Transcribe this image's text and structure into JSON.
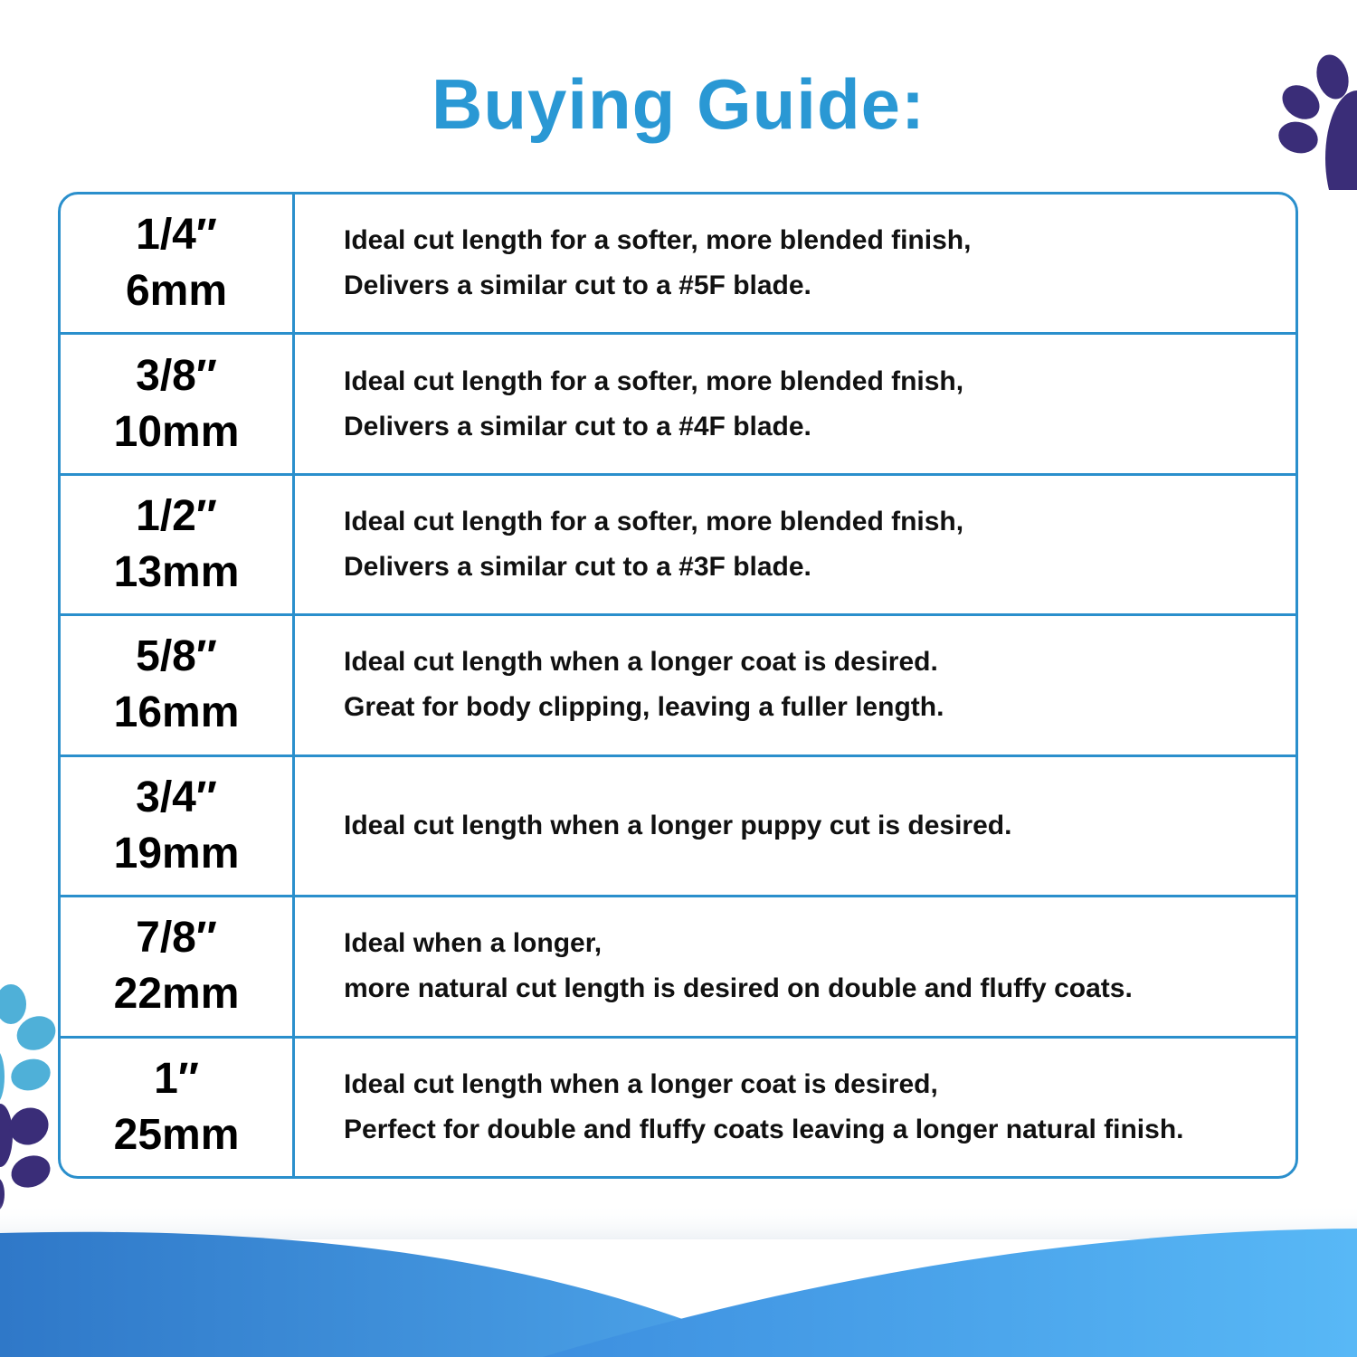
{
  "title": "Buying Guide:",
  "colors": {
    "accent": "#2a98d4",
    "border": "#2a8fcc",
    "paw_dark": "#3a2d78",
    "paw_light": "#4fb0d8",
    "wave_left": "#2f78c8",
    "wave_right": "#4aaaf0"
  },
  "rows": [
    {
      "inch": "1/4″",
      "mm": "6mm",
      "lines": [
        "Ideal cut length for a softer, more blended finish,",
        "Delivers a similar cut to a #5F blade."
      ]
    },
    {
      "inch": "3/8″",
      "mm": "10mm",
      "lines": [
        "Ideal cut length for a softer, more blended fnish,",
        "Delivers a similar cut to a #4F blade."
      ]
    },
    {
      "inch": "1/2″",
      "mm": "13mm",
      "lines": [
        "Ideal cut length for a softer, more blended fnish,",
        "Delivers a similar cut to a #3F blade."
      ]
    },
    {
      "inch": "5/8″",
      "mm": "16mm",
      "lines": [
        "Ideal cut length when a longer coat is desired.",
        "Great for body clipping, leaving a fuller length."
      ]
    },
    {
      "inch": "3/4″",
      "mm": "19mm",
      "lines": [
        "Ideal cut length when a longer puppy cut is desired."
      ]
    },
    {
      "inch": "7/8″",
      "mm": "22mm",
      "lines": [
        "Ideal when a longer,",
        "more natural cut length is desired on double and fluffy coats."
      ]
    },
    {
      "inch": "1″",
      "mm": "25mm",
      "lines": [
        "Ideal cut length when a longer coat is desired,",
        "Perfect for double and fluffy coats leaving a longer natural finish."
      ]
    }
  ]
}
